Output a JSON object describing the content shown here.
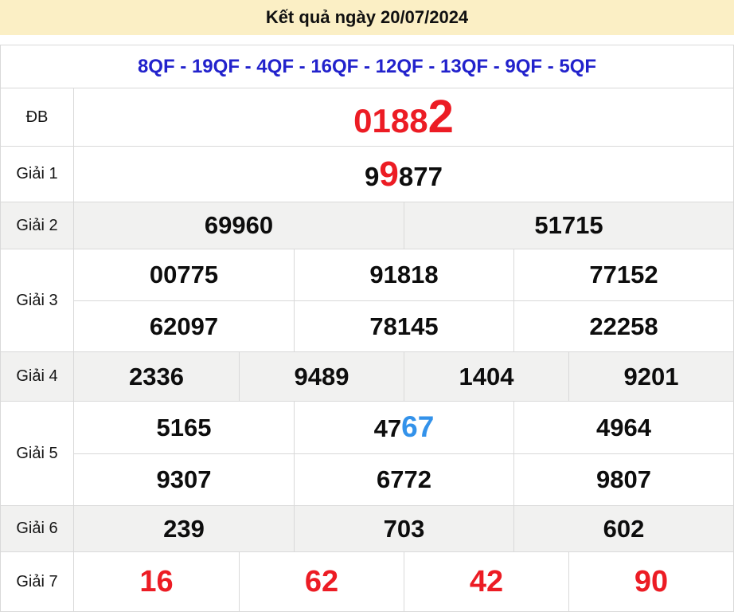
{
  "title_bar": {
    "text": "Kết quả ngày 20/07/2024"
  },
  "stations_row": {
    "text": "8QF - 19QF - 4QF - 16QF - 12QF - 13QF - 9QF - 5QF"
  },
  "table": {
    "special": {
      "label": "ĐB",
      "value_prefix": "0188",
      "value_highlight": "2"
    },
    "prize1": {
      "label": "Giải 1",
      "value_pre": "9",
      "value_highlight": "9",
      "value_post": "877"
    },
    "prize2": {
      "label": "Giải 2",
      "values": [
        "69960",
        "51715"
      ]
    },
    "prize3": {
      "label": "Giải 3",
      "row1": [
        "00775",
        "91818",
        "77152"
      ],
      "row2": [
        "62097",
        "78145",
        "22258"
      ]
    },
    "prize4": {
      "label": "Giải 4",
      "values": [
        "2336",
        "9489",
        "1404",
        "9201"
      ]
    },
    "prize5": {
      "label": "Giải 5",
      "row1_cell1": "5165",
      "row1_cell2_pre": "47",
      "row1_cell2_highlight": "67",
      "row1_cell3": "4964",
      "row2": [
        "9307",
        "6772",
        "9807"
      ]
    },
    "prize6": {
      "label": "Giải 6",
      "values": [
        "239",
        "703",
        "602"
      ]
    },
    "prize7": {
      "label": "Giải 7",
      "values": [
        "16",
        "62",
        "42",
        "90"
      ]
    }
  },
  "colors": {
    "header_bg": "#fbefc5",
    "stations_text": "#2222cc",
    "highlight_red": "#ec1c24",
    "highlight_blue": "#3392ea",
    "number_text": "#0d0d0d",
    "alt_row_bg": "#f1f1f0",
    "border": "#d9d9d9",
    "page_bg": "#ffffff"
  }
}
